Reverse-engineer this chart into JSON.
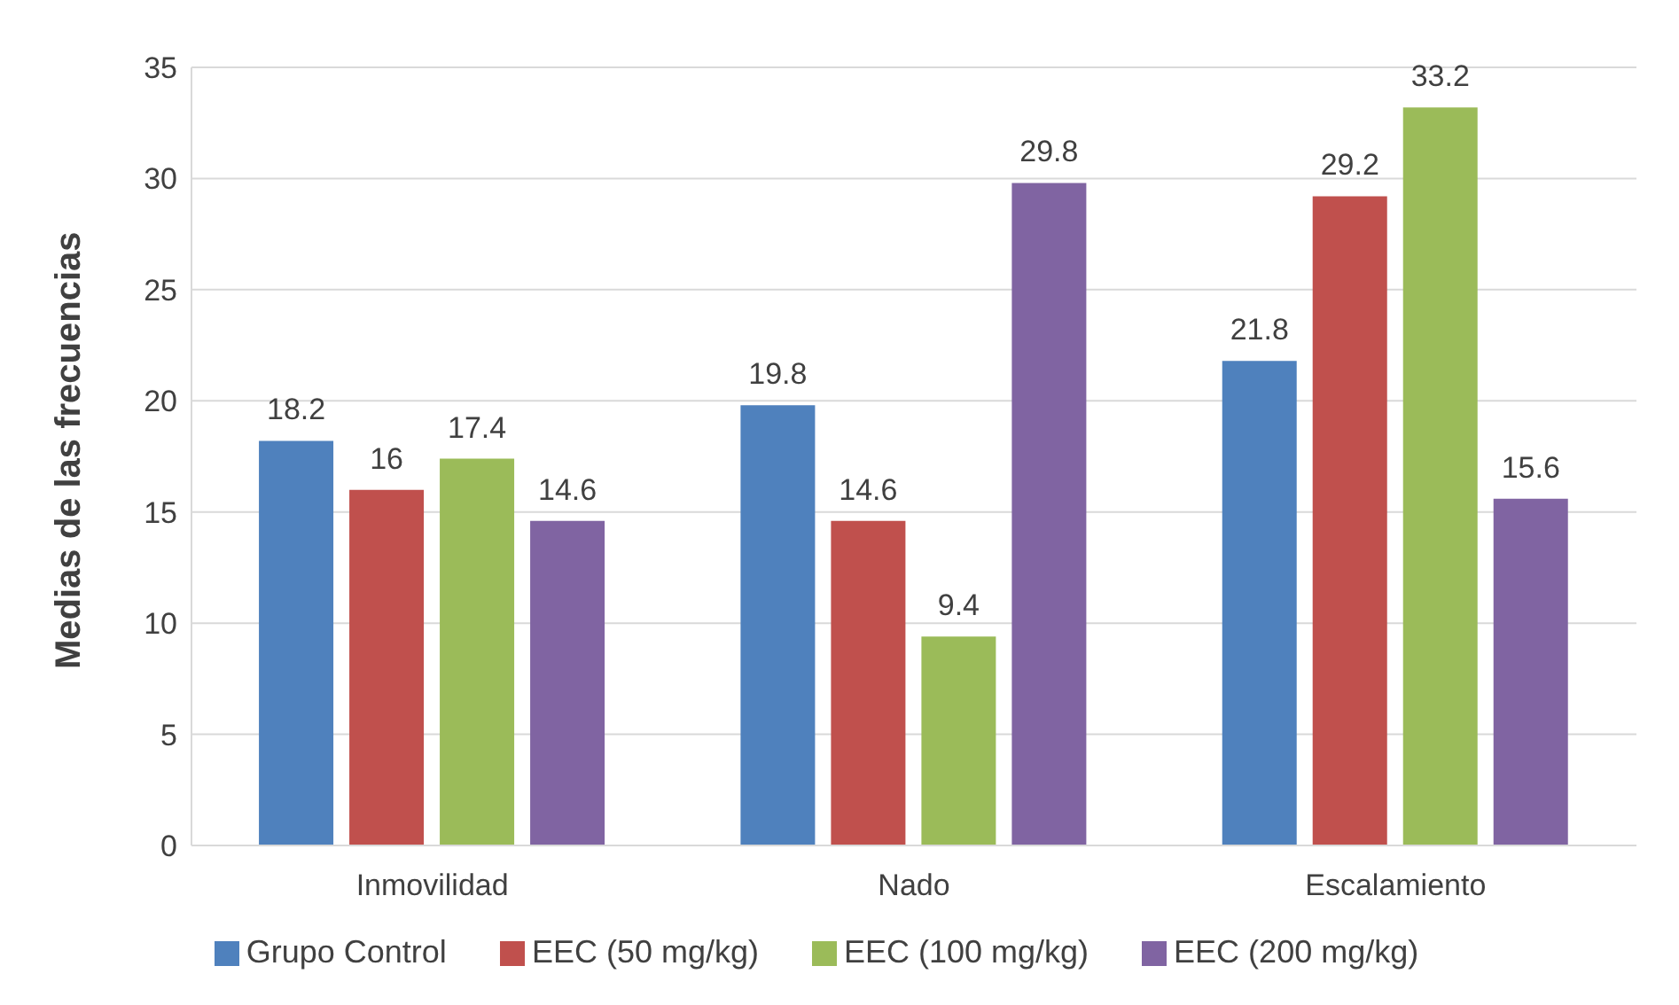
{
  "chart_data": {
    "type": "bar",
    "ylabel": "Medias de las frecuencias",
    "categories": [
      "Inmovilidad",
      "Nado",
      "Escalamiento"
    ],
    "series": [
      {
        "name": "Grupo Control",
        "color": "#4f81bd",
        "values": [
          18.2,
          19.8,
          21.8
        ]
      },
      {
        "name": "EEC (50 mg/kg)",
        "color": "#c0504d",
        "values": [
          16,
          14.6,
          29.2
        ]
      },
      {
        "name": "EEC (100 mg/kg)",
        "color": "#9bbb59",
        "values": [
          17.4,
          9.4,
          33.2
        ]
      },
      {
        "name": "EEC (200 mg/kg)",
        "color": "#8064a2",
        "values": [
          14.6,
          29.8,
          15.6
        ]
      }
    ],
    "ylim": [
      0,
      35
    ],
    "yticks": [
      0,
      5,
      10,
      15,
      20,
      25,
      30,
      35
    ],
    "grid": "y",
    "legend": "bottom",
    "data_labels": true
  }
}
